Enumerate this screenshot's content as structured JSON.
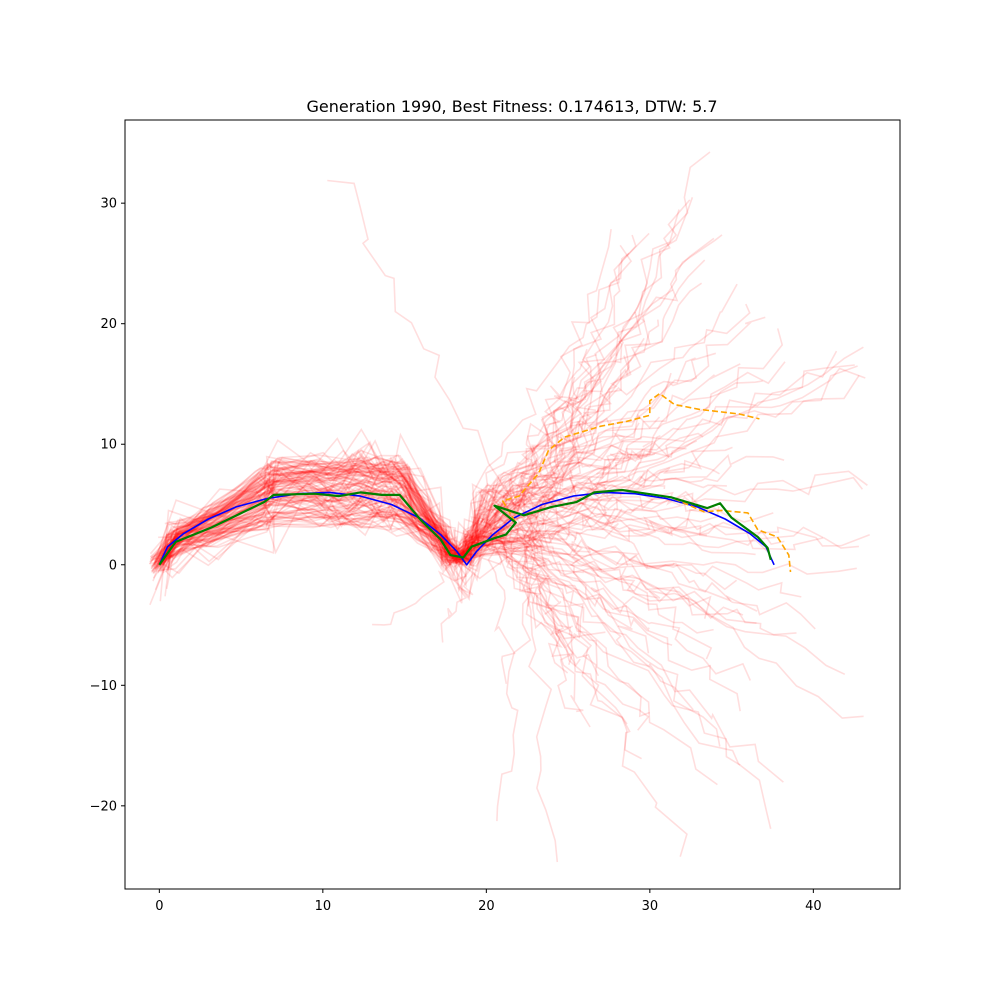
{
  "chart_data": {
    "type": "line",
    "title": "Generation 1990, Best Fitness: 0.174613, DTW: 5.7",
    "xlabel": "",
    "ylabel": "",
    "xlim": [
      -2.1,
      45.3
    ],
    "ylim": [
      -26.9,
      36.9
    ],
    "xticks": [
      0,
      10,
      20,
      30,
      40
    ],
    "yticks": [
      -20,
      -10,
      0,
      10,
      20,
      30
    ],
    "xtick_labels": [
      "0",
      "10",
      "20",
      "30",
      "40"
    ],
    "ytick_labels": [
      "−20",
      "−10",
      "0",
      "10",
      "20",
      "30"
    ],
    "grid": false,
    "legend": "none",
    "colors": {
      "target": "#0000ff",
      "best": "#008000",
      "candidate": "#ffa500",
      "population": "#ff0000"
    },
    "series": [
      {
        "role": "target",
        "style": "solid",
        "points": [
          [
            0,
            0
          ],
          [
            0.5,
            1.5
          ],
          [
            1.5,
            2.6
          ],
          [
            3,
            3.8
          ],
          [
            4.7,
            4.8
          ],
          [
            6.6,
            5.5
          ],
          [
            8.5,
            5.9
          ],
          [
            10.4,
            6.0
          ],
          [
            12.3,
            5.7
          ],
          [
            14.2,
            5.0
          ],
          [
            15.9,
            3.9
          ],
          [
            17.2,
            2.5
          ],
          [
            18.2,
            1.1
          ],
          [
            18.8,
            0
          ],
          [
            19.4,
            1.1
          ],
          [
            20.4,
            2.5
          ],
          [
            21.7,
            3.9
          ],
          [
            23.4,
            5.0
          ],
          [
            25.3,
            5.7
          ],
          [
            27.2,
            6.0
          ],
          [
            29.1,
            5.9
          ],
          [
            31,
            5.5
          ],
          [
            32.9,
            4.8
          ],
          [
            34.6,
            3.8
          ],
          [
            36.1,
            2.6
          ],
          [
            37.1,
            1.5
          ],
          [
            37.6,
            0
          ]
        ]
      },
      {
        "role": "best",
        "style": "solid",
        "points": [
          [
            0,
            0
          ],
          [
            1,
            1.9
          ],
          [
            3.2,
            3.1
          ],
          [
            6.4,
            5.2
          ],
          [
            7,
            5.8
          ],
          [
            9.5,
            5.9
          ],
          [
            11,
            5.7
          ],
          [
            12.3,
            6
          ],
          [
            13.6,
            5.8
          ],
          [
            14.7,
            5.8
          ],
          [
            16,
            3.7
          ],
          [
            17.2,
            2.1
          ],
          [
            17.8,
            0.8
          ],
          [
            18.6,
            0.6
          ],
          [
            19.1,
            1.5
          ],
          [
            20.5,
            2.2
          ],
          [
            21.2,
            2.5
          ],
          [
            21.8,
            3.5
          ],
          [
            20.5,
            4.9
          ],
          [
            22.3,
            4.1
          ],
          [
            24,
            4.8
          ],
          [
            25.5,
            5.2
          ],
          [
            26.6,
            6
          ],
          [
            28.3,
            6.2
          ],
          [
            31.3,
            5.6
          ],
          [
            33.5,
            4.7
          ],
          [
            34.3,
            5.1
          ],
          [
            35,
            3.9
          ],
          [
            36.6,
            2.3
          ],
          [
            37.2,
            1.4
          ],
          [
            37.4,
            0.4
          ]
        ]
      },
      {
        "role": "candidate",
        "style": "dashed",
        "points": [
          [
            0,
            0
          ],
          [
            1,
            1.9
          ],
          [
            3.2,
            3.1
          ],
          [
            6.4,
            5.2
          ],
          [
            7,
            5.8
          ],
          [
            9.5,
            5.9
          ],
          [
            11,
            5.7
          ],
          [
            12.3,
            6
          ],
          [
            13.6,
            5.8
          ],
          [
            14.7,
            5.8
          ],
          [
            16,
            3.7
          ],
          [
            17.2,
            2.1
          ],
          [
            17.8,
            0.8
          ],
          [
            18.6,
            0.6
          ],
          [
            19.1,
            1.5
          ],
          [
            20.5,
            2.2
          ],
          [
            21.2,
            2.5
          ],
          [
            21.8,
            3.5
          ],
          [
            21,
            5.3
          ],
          [
            22,
            5.7
          ],
          [
            23.2,
            7.6
          ],
          [
            23.8,
            9.5
          ],
          [
            24.8,
            10.6
          ],
          [
            27,
            11.5
          ],
          [
            28.6,
            11.9
          ],
          [
            30,
            12.4
          ],
          [
            30,
            13.6
          ],
          [
            30.6,
            14.2
          ],
          [
            31.5,
            13.3
          ],
          [
            33,
            12.9
          ],
          [
            35.5,
            12.5
          ],
          [
            36.7,
            12.1
          ]
        ]
      },
      {
        "role": "candidate-tail",
        "style": "dashed",
        "points": [
          [
            26.6,
            6
          ],
          [
            28.3,
            6.2
          ],
          [
            31.3,
            5.6
          ],
          [
            33.3,
            4.4
          ],
          [
            34.4,
            4.5
          ],
          [
            36,
            4.3
          ],
          [
            36.6,
            2.9
          ],
          [
            37.8,
            2.3
          ],
          [
            38.5,
            0.8
          ],
          [
            38.6,
            -0.6
          ]
        ]
      }
    ],
    "population": {
      "count": 120,
      "endpoint_examples": [
        [
          33.5,
          34
        ],
        [
          10.8,
          32.5
        ],
        [
          41,
          17
        ],
        [
          43,
          1
        ],
        [
          40.4,
          -4.8
        ],
        [
          21.2,
          -20.8
        ],
        [
          24,
          -24
        ],
        [
          21.5,
          -9.4
        ],
        [
          13.6,
          -5.5
        ],
        [
          36,
          -11.5
        ],
        [
          39.2,
          -5.8
        ],
        [
          17,
          -6
        ],
        [
          29.8,
          -14.3
        ],
        [
          36.5,
          21.4
        ],
        [
          32.4,
          29.5
        ],
        [
          42.5,
          17
        ],
        [
          39.5,
          -2
        ],
        [
          37,
          -5.1
        ]
      ]
    }
  }
}
